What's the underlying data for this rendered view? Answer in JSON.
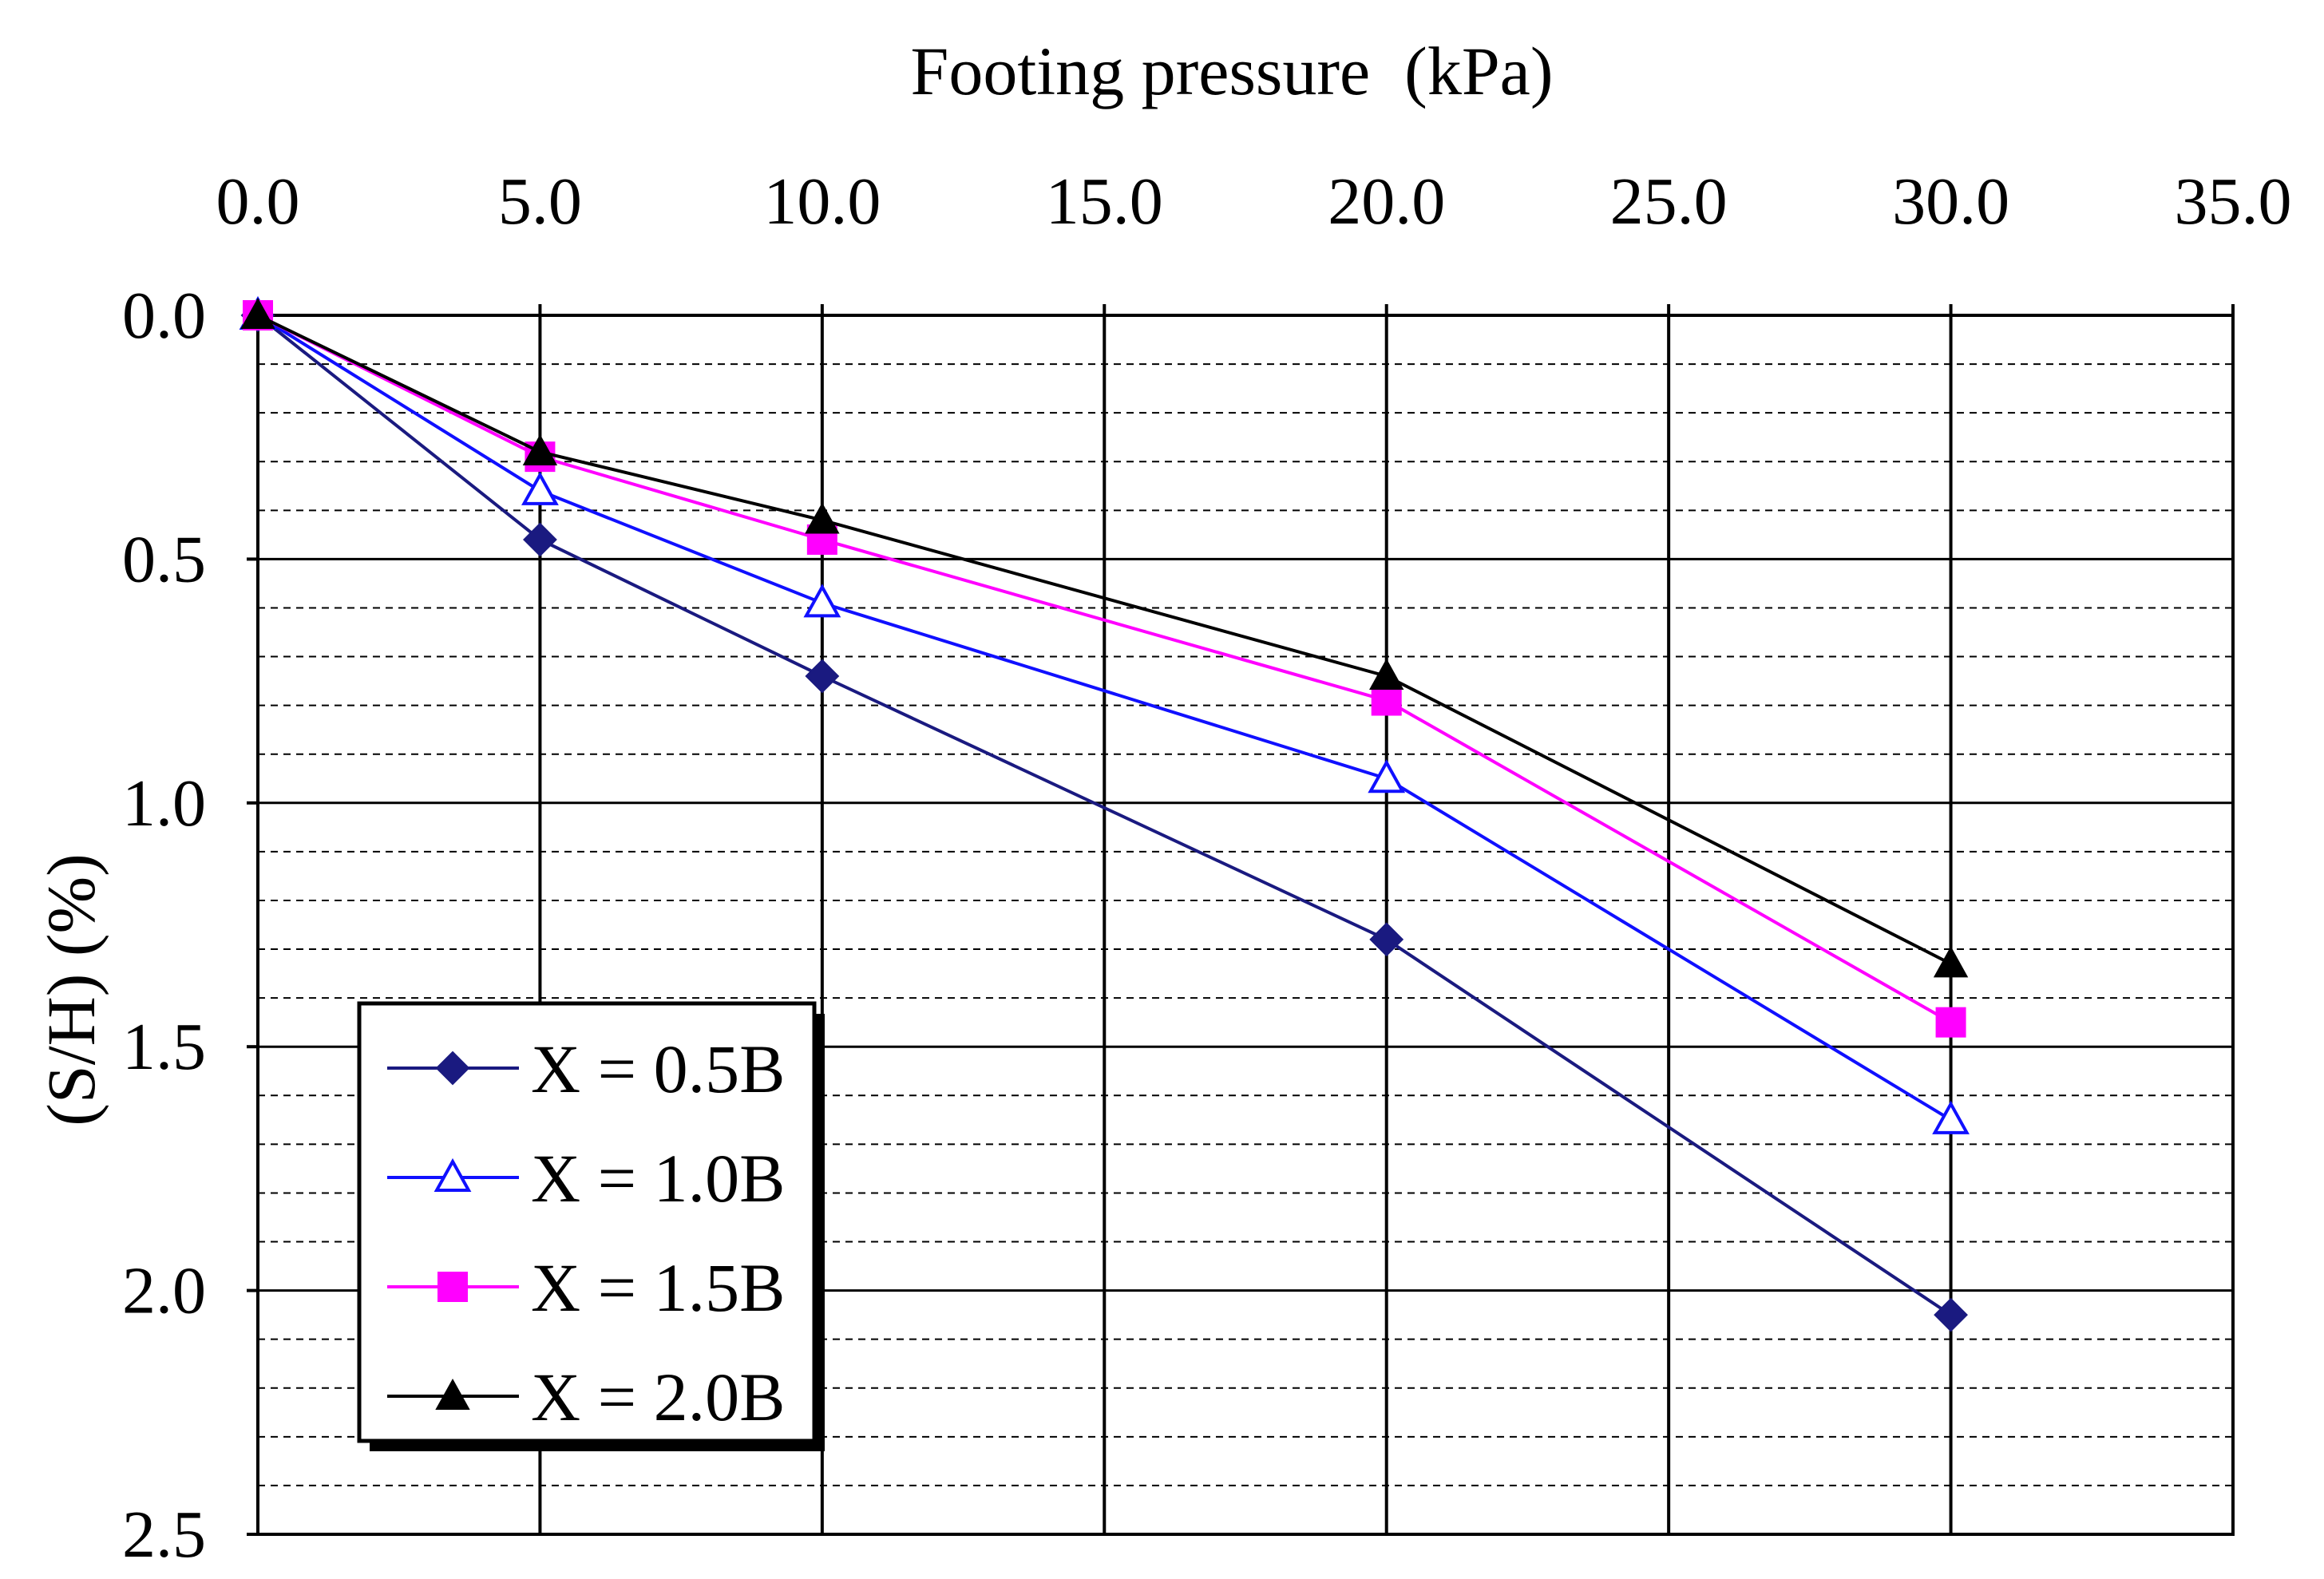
{
  "chart_data": {
    "type": "line",
    "xlabel": "Footing pressure  (kPa)",
    "ylabel": "(S/H) (%)",
    "xlim": [
      0,
      35
    ],
    "ylim": [
      0,
      2.5
    ],
    "y_inverted": true,
    "x_axis_position": "top",
    "grid": true,
    "legend_position": "bottom-left",
    "x_ticks": [
      0,
      5,
      10,
      15,
      20,
      25,
      30,
      35
    ],
    "x_tick_labels": [
      "0.0",
      "5.0",
      "10.0",
      "15.0",
      "20.0",
      "25.0",
      "30.0",
      "35.0"
    ],
    "y_ticks": [
      0,
      0.5,
      1.0,
      1.5,
      2.0,
      2.5
    ],
    "y_tick_labels": [
      "0.0",
      "0.5",
      "1.0",
      "1.5",
      "2.0",
      "2.5"
    ],
    "y_minor_step": 0.1,
    "series": [
      {
        "name": "X = 0.5B",
        "color": "#1a1a80",
        "marker": "diamond-filled",
        "x": [
          0,
          5,
          10,
          20,
          30
        ],
        "y": [
          0,
          0.46,
          0.74,
          1.28,
          2.05
        ]
      },
      {
        "name": "X = 1.0B",
        "color": "#1010ff",
        "marker": "triangle-open",
        "x": [
          0,
          5,
          10,
          20,
          30
        ],
        "y": [
          0,
          0.36,
          0.59,
          0.95,
          1.65
        ]
      },
      {
        "name": "X = 1.5B",
        "color": "#ff00ff",
        "marker": "square-filled",
        "x": [
          0,
          5,
          10,
          20,
          30
        ],
        "y": [
          0,
          0.29,
          0.46,
          0.79,
          1.45
        ]
      },
      {
        "name": "X = 2.0B",
        "color": "#000000",
        "marker": "triangle-filled",
        "x": [
          0,
          5,
          10,
          20,
          30
        ],
        "y": [
          0,
          0.28,
          0.42,
          0.74,
          1.33
        ]
      }
    ]
  }
}
